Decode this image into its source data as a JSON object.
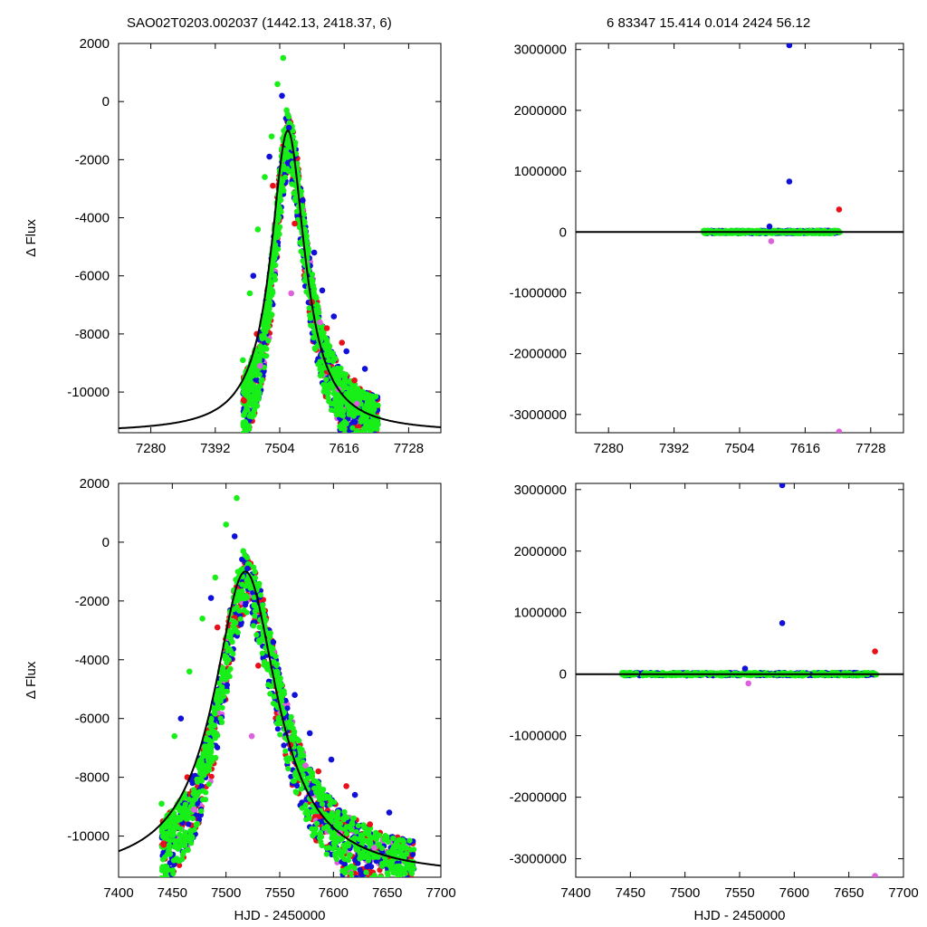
{
  "header": {
    "title_left": "SAO02T0203.002037 (1442.13, 2418.37,    6)",
    "title_right": "6   83347   15.414   0.014   2424   56.12"
  },
  "colors": {
    "red": "#e8101a",
    "blue": "#1010d8",
    "green": "#18ee18",
    "violet": "#dd60dd",
    "curve": "#000000"
  },
  "chart_data": [
    {
      "id": "top-left",
      "type": "scatter",
      "xlim": [
        7224,
        7784
      ],
      "ylim": [
        -11400,
        2000
      ],
      "xticks": [
        7280,
        7392,
        7504,
        7616,
        7728
      ],
      "xtick_labels": [
        "7280",
        "7392",
        "7504",
        "7616",
        "7728"
      ],
      "yticks": [
        2000,
        0,
        -2000,
        -4000,
        -6000,
        -8000,
        -10000
      ],
      "ytick_labels": [
        "2000",
        "0",
        "-2000",
        "-4000",
        "-6000",
        "-8000",
        "-10000"
      ],
      "ylabel": "Δ Flux",
      "xlabel": "",
      "series": [
        {
          "color": "green",
          "x": [
            7440,
            7452,
            7466,
            7478,
            7490,
            7500,
            7510,
            7516,
            7526,
            7538,
            7550,
            7566,
            7584,
            7604,
            7624,
            7640
          ],
          "y": [
            -8900,
            -6600,
            -4400,
            -2600,
            -1200,
            600,
            1500,
            -300,
            -1400,
            -3100,
            -4700,
            -6700,
            -8500,
            -9400,
            -10100,
            -10700
          ]
        },
        {
          "color": "blue",
          "x": [
            7458,
            7486,
            7508,
            7520,
            7544,
            7564,
            7578,
            7598,
            7620,
            7652
          ],
          "y": [
            -6000,
            -1900,
            200,
            -900,
            -3400,
            -5200,
            -6500,
            -7400,
            -8600,
            -9200
          ]
        },
        {
          "color": "red",
          "x": [
            7442,
            7464,
            7492,
            7530,
            7560,
            7586,
            7612,
            7634
          ],
          "y": [
            -10300,
            -8000,
            -2900,
            -4200,
            -6900,
            -7800,
            -8300,
            -9600
          ]
        },
        {
          "color": "violet",
          "x": [
            7470,
            7524,
            7574,
            7606,
            7638
          ],
          "y": [
            -9100,
            -6600,
            -7600,
            -9900,
            -10400
          ]
        }
      ],
      "model": {
        "type": "line",
        "peak_x": 7518,
        "peak_y": -1000,
        "base_y": -11400,
        "width": 36
      }
    },
    {
      "id": "top-right",
      "type": "scatter",
      "xlim": [
        7224,
        7784
      ],
      "ylim": [
        -3300000,
        3100000
      ],
      "xticks": [
        7280,
        7392,
        7504,
        7616,
        7728
      ],
      "xtick_labels": [
        "7280",
        "7392",
        "7504",
        "7616",
        "7728"
      ],
      "yticks": [
        3000000,
        2000000,
        1000000,
        0,
        -1000000,
        -2000000,
        -3000000
      ],
      "ytick_labels": [
        "3000000",
        "2000000",
        "1000000",
        "0",
        "-1000000",
        "-2000000",
        "-3000000"
      ],
      "ylabel": "",
      "xlabel": "",
      "series": [
        {
          "color": "blue",
          "x": [
            7589,
            7589,
            7555
          ],
          "y": [
            3070000,
            830000,
            90000
          ]
        },
        {
          "color": "red",
          "x": [
            7674
          ],
          "y": [
            370000
          ]
        },
        {
          "color": "violet",
          "x": [
            7558,
            7674
          ],
          "y": [
            -150000,
            -3280000
          ]
        },
        {
          "color": "green",
          "x": [
            7445,
            7470,
            7500,
            7530,
            7560,
            7590,
            7620,
            7650,
            7675
          ],
          "y": [
            -10000,
            8000,
            -15000,
            12000,
            -20000,
            5000,
            -8000,
            15000,
            -5000
          ]
        }
      ],
      "model": {
        "type": "line",
        "y": 0
      }
    },
    {
      "id": "bottom-left",
      "type": "scatter",
      "xlim": [
        7400,
        7700
      ],
      "ylim": [
        -11400,
        2000
      ],
      "xticks": [
        7400,
        7450,
        7500,
        7550,
        7600,
        7650,
        7700
      ],
      "xtick_labels": [
        "7400",
        "7450",
        "7500",
        "7550",
        "7600",
        "7650",
        "7700"
      ],
      "yticks": [
        2000,
        0,
        -2000,
        -4000,
        -6000,
        -8000,
        -10000
      ],
      "ytick_labels": [
        "2000",
        "0",
        "-2000",
        "-4000",
        "-6000",
        "-8000",
        "-10000"
      ],
      "ylabel": "Δ Flux",
      "xlabel": "HJD - 2450000",
      "series": [
        {
          "color": "green",
          "x": [
            7440,
            7452,
            7466,
            7478,
            7490,
            7500,
            7510,
            7516,
            7526,
            7538,
            7550,
            7566,
            7584,
            7604,
            7624,
            7640
          ],
          "y": [
            -8900,
            -6600,
            -4400,
            -2600,
            -1200,
            600,
            1500,
            -300,
            -1400,
            -3100,
            -4700,
            -6700,
            -8500,
            -9400,
            -10100,
            -10700
          ]
        },
        {
          "color": "blue",
          "x": [
            7458,
            7486,
            7508,
            7520,
            7544,
            7564,
            7578,
            7598,
            7620,
            7652
          ],
          "y": [
            -6000,
            -1900,
            200,
            -900,
            -3400,
            -5200,
            -6500,
            -7400,
            -8600,
            -9200
          ]
        },
        {
          "color": "red",
          "x": [
            7442,
            7464,
            7492,
            7530,
            7560,
            7586,
            7612,
            7634
          ],
          "y": [
            -10300,
            -8000,
            -2900,
            -4200,
            -6900,
            -7800,
            -8300,
            -9600
          ]
        },
        {
          "color": "violet",
          "x": [
            7470,
            7524,
            7574,
            7606,
            7638
          ],
          "y": [
            -9100,
            -6600,
            -7600,
            -9900,
            -10400
          ]
        }
      ],
      "model": {
        "type": "line",
        "peak_x": 7518,
        "peak_y": -1000,
        "base_y": -11400,
        "width": 36
      }
    },
    {
      "id": "bottom-right",
      "type": "scatter",
      "xlim": [
        7400,
        7700
      ],
      "ylim": [
        -3300000,
        3100000
      ],
      "xticks": [
        7400,
        7450,
        7500,
        7550,
        7600,
        7650,
        7700
      ],
      "xtick_labels": [
        "7400",
        "7450",
        "7500",
        "7550",
        "7600",
        "7650",
        "7700"
      ],
      "yticks": [
        3000000,
        2000000,
        1000000,
        0,
        -1000000,
        -2000000,
        -3000000
      ],
      "ytick_labels": [
        "3000000",
        "2000000",
        "1000000",
        "0",
        "-1000000",
        "-2000000",
        "-3000000"
      ],
      "ylabel": "",
      "xlabel": "HJD - 2450000",
      "series": [
        {
          "color": "blue",
          "x": [
            7589,
            7589,
            7555
          ],
          "y": [
            3070000,
            830000,
            90000
          ]
        },
        {
          "color": "red",
          "x": [
            7674
          ],
          "y": [
            370000
          ]
        },
        {
          "color": "violet",
          "x": [
            7558,
            7674
          ],
          "y": [
            -150000,
            -3280000
          ]
        },
        {
          "color": "green",
          "x": [
            7445,
            7470,
            7500,
            7530,
            7560,
            7590,
            7620,
            7650,
            7675
          ],
          "y": [
            -10000,
            8000,
            -15000,
            12000,
            -20000,
            5000,
            -8000,
            15000,
            -5000
          ]
        }
      ],
      "model": {
        "type": "line",
        "y": 0
      }
    }
  ]
}
